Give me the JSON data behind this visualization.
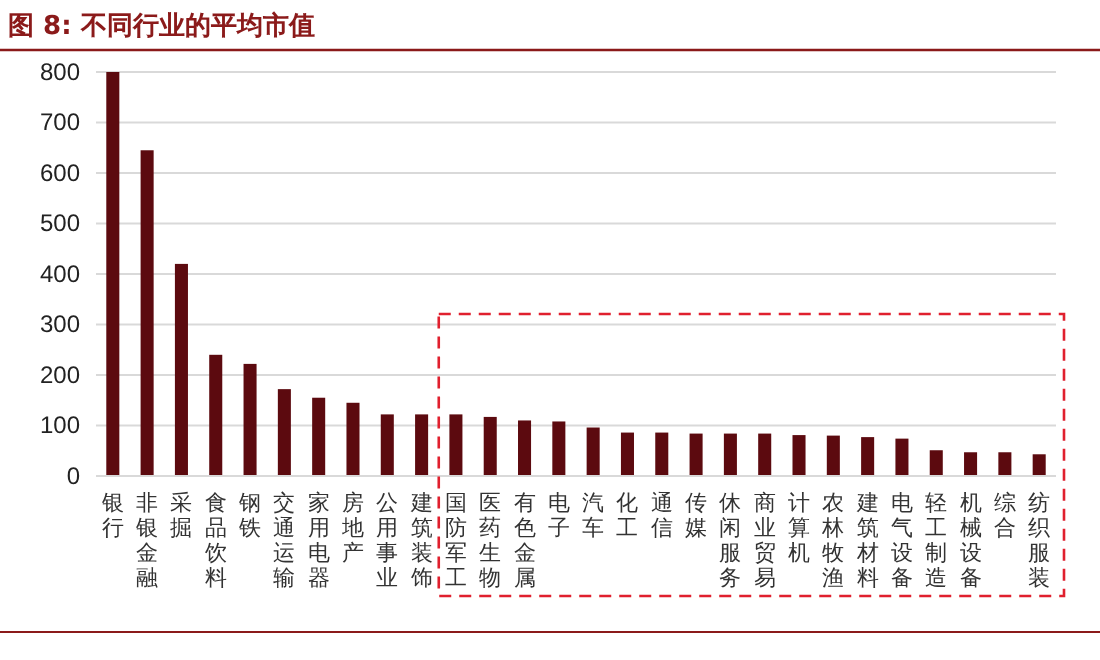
{
  "chart_data": {
    "type": "bar",
    "title": "图 8: 不同行业的平均市值",
    "categories": [
      "银行",
      "非银金融",
      "采掘",
      "食品饮料",
      "钢铁",
      "交通运输",
      "家用电器",
      "房地产",
      "公用事业",
      "建筑装饰",
      "国防军工",
      "医药生物",
      "有色金属",
      "电子",
      "汽车",
      "化工",
      "通信",
      "传媒",
      "休闲服务",
      "商业贸易",
      "计算机",
      "农林牧渔",
      "建筑材料",
      "电气设备",
      "轻工制造",
      "机械设备",
      "综合",
      "纺织服装"
    ],
    "values": [
      800,
      645,
      420,
      240,
      222,
      172,
      155,
      145,
      122,
      122,
      122,
      117,
      110,
      108,
      96,
      86,
      86,
      84,
      84,
      84,
      81,
      80,
      77,
      74,
      51,
      47,
      47,
      43
    ],
    "color": "#5c0a0f",
    "ylim": [
      0,
      800
    ],
    "yticks": [
      0,
      100,
      200,
      300,
      400,
      500,
      600,
      700,
      800
    ],
    "grid": "y"
  }
}
